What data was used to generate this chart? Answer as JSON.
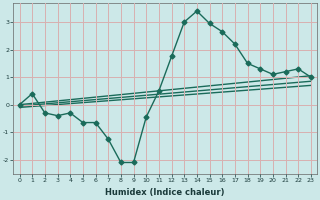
{
  "xlabel": "Humidex (Indice chaleur)",
  "bg_color": "#cce8e8",
  "grid_color": "#d8b0b0",
  "line_color": "#1a6b5a",
  "markersize": 2.5,
  "linewidth": 1.0,
  "xlim": [
    -0.5,
    23.5
  ],
  "ylim": [
    -2.5,
    3.7
  ],
  "yticks": [
    -2,
    -1,
    0,
    1,
    2,
    3
  ],
  "xticks": [
    0,
    1,
    2,
    3,
    4,
    5,
    6,
    7,
    8,
    9,
    10,
    11,
    12,
    13,
    14,
    15,
    16,
    17,
    18,
    19,
    20,
    21,
    22,
    23
  ],
  "line1_x": [
    0,
    1,
    2,
    3,
    4,
    5,
    6,
    7,
    8,
    9,
    10,
    11,
    12,
    13,
    14,
    15,
    16,
    17,
    18,
    19,
    20,
    21,
    22,
    23
  ],
  "line1_y": [
    0.0,
    0.4,
    -0.3,
    -0.4,
    -0.3,
    -0.65,
    -0.65,
    -1.25,
    -2.1,
    -2.1,
    -0.45,
    0.5,
    1.75,
    3.0,
    3.4,
    2.95,
    2.65,
    2.2,
    1.5,
    1.3,
    1.1,
    1.2,
    1.3,
    1.0
  ],
  "line2_x": [
    0,
    23
  ],
  "line2_y": [
    0.0,
    1.05
  ],
  "line3_x": [
    0,
    23
  ],
  "line3_y": [
    -0.05,
    0.85
  ],
  "line4_x": [
    0,
    23
  ],
  "line4_y": [
    -0.1,
    0.7
  ]
}
